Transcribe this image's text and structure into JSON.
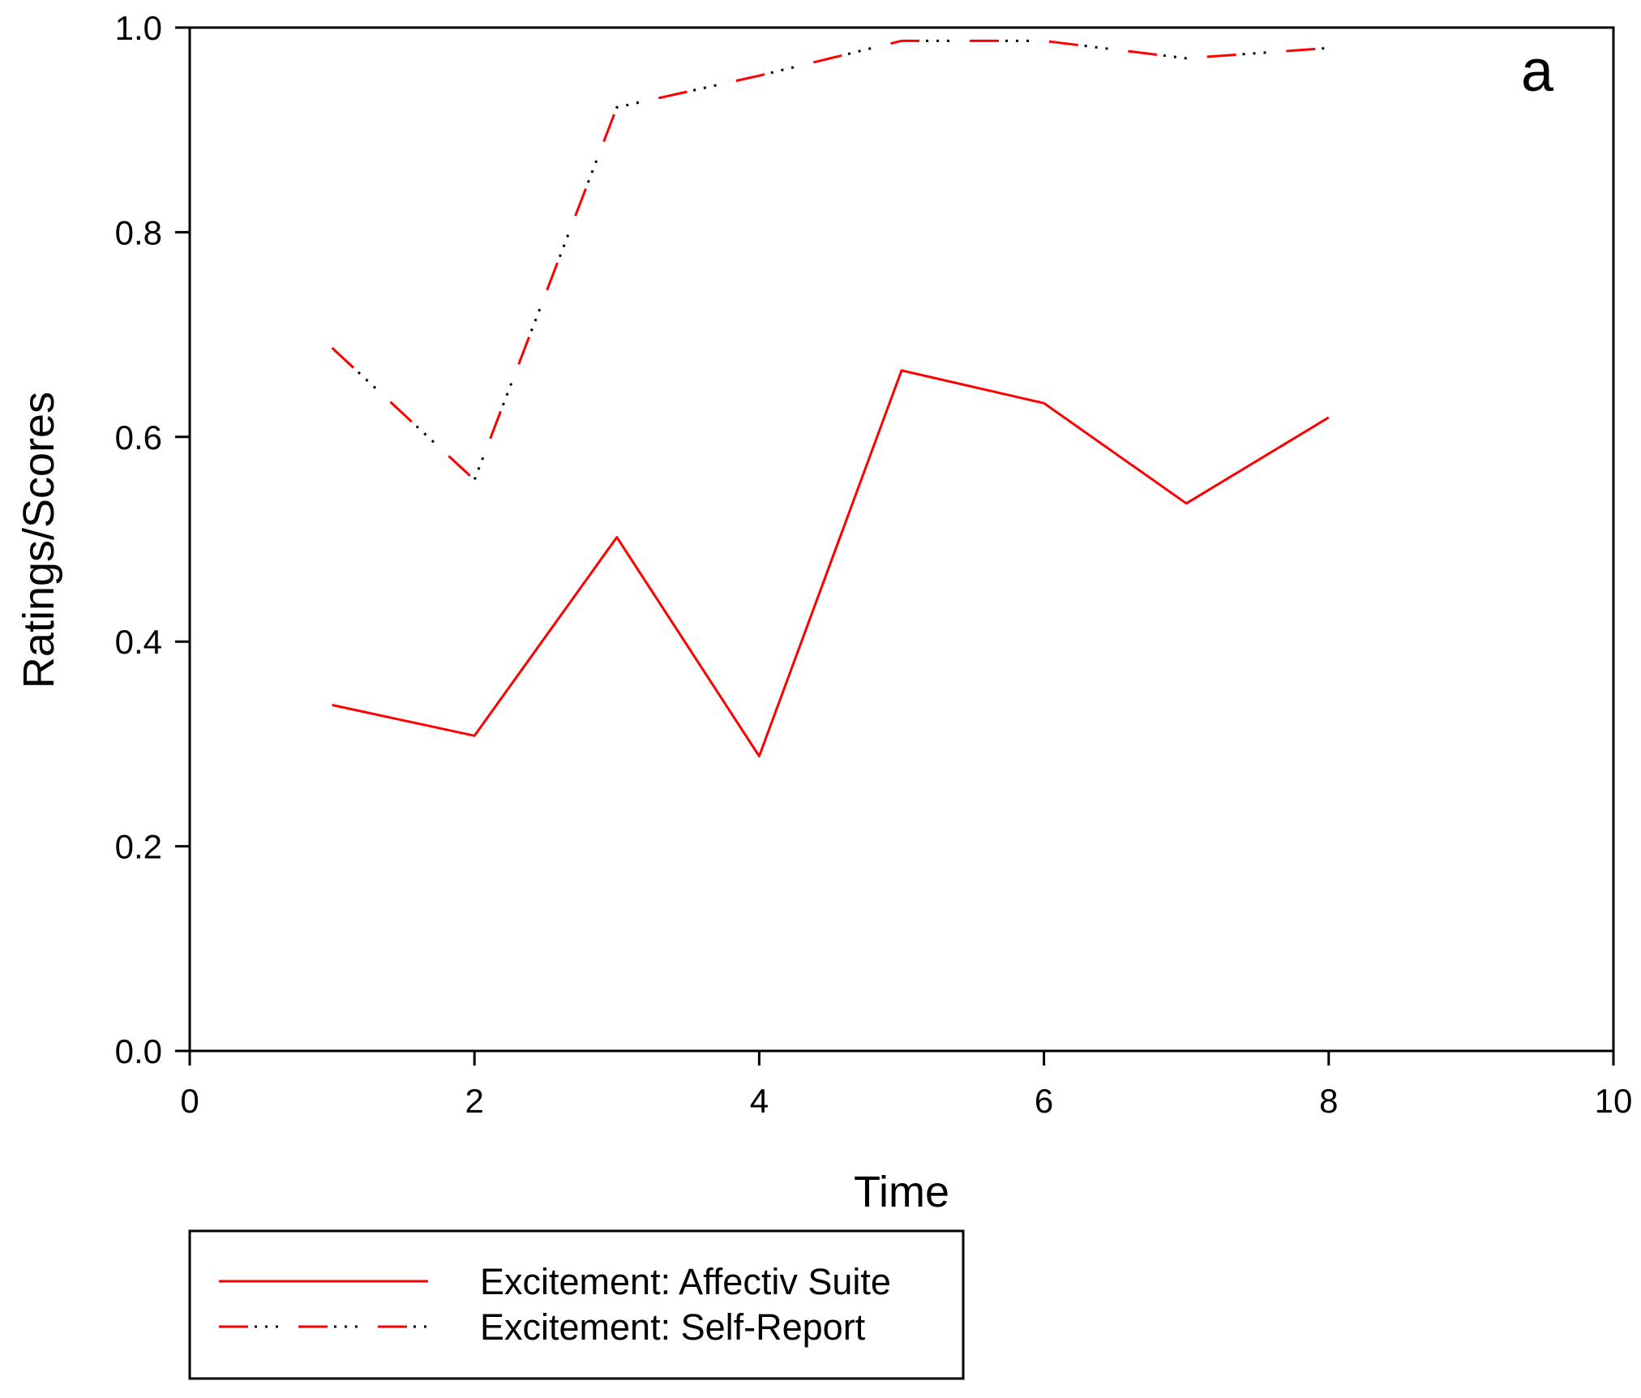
{
  "chart_data": {
    "type": "line",
    "panel_label": "a",
    "title": "",
    "xlabel": "Time",
    "ylabel": "Ratings/Scores",
    "xlim": [
      0,
      10
    ],
    "ylim": [
      0,
      1.0
    ],
    "x_ticks": [
      0,
      2,
      4,
      6,
      8,
      10
    ],
    "x_tick_labels": [
      "0",
      "2",
      "4",
      "6",
      "8",
      "10"
    ],
    "y_ticks": [
      0,
      0.2,
      0.4,
      0.6,
      0.8,
      1.0
    ],
    "y_tick_labels": [
      "0.0",
      "0.2",
      "0.4",
      "0.6",
      "0.8",
      "1.0"
    ],
    "grid": false,
    "legend_position": "bottom",
    "series": [
      {
        "name": "Excitement: Affectiv Suite",
        "color": "#ff0000",
        "style": "solid",
        "x": [
          1,
          2,
          3,
          4,
          5,
          6,
          7,
          8
        ],
        "y": [
          0.338,
          0.308,
          0.502,
          0.288,
          0.665,
          0.633,
          0.535,
          0.619
        ]
      },
      {
        "name": "Excitement: Self-Report",
        "color": "#ff0000",
        "secondary_color": "#000000",
        "style": "dash-dot-dot",
        "x": [
          1,
          2,
          3,
          4,
          5,
          6,
          7,
          8
        ],
        "y": [
          0.687,
          0.558,
          0.922,
          0.953,
          0.987,
          0.987,
          0.97,
          0.98
        ]
      }
    ]
  }
}
